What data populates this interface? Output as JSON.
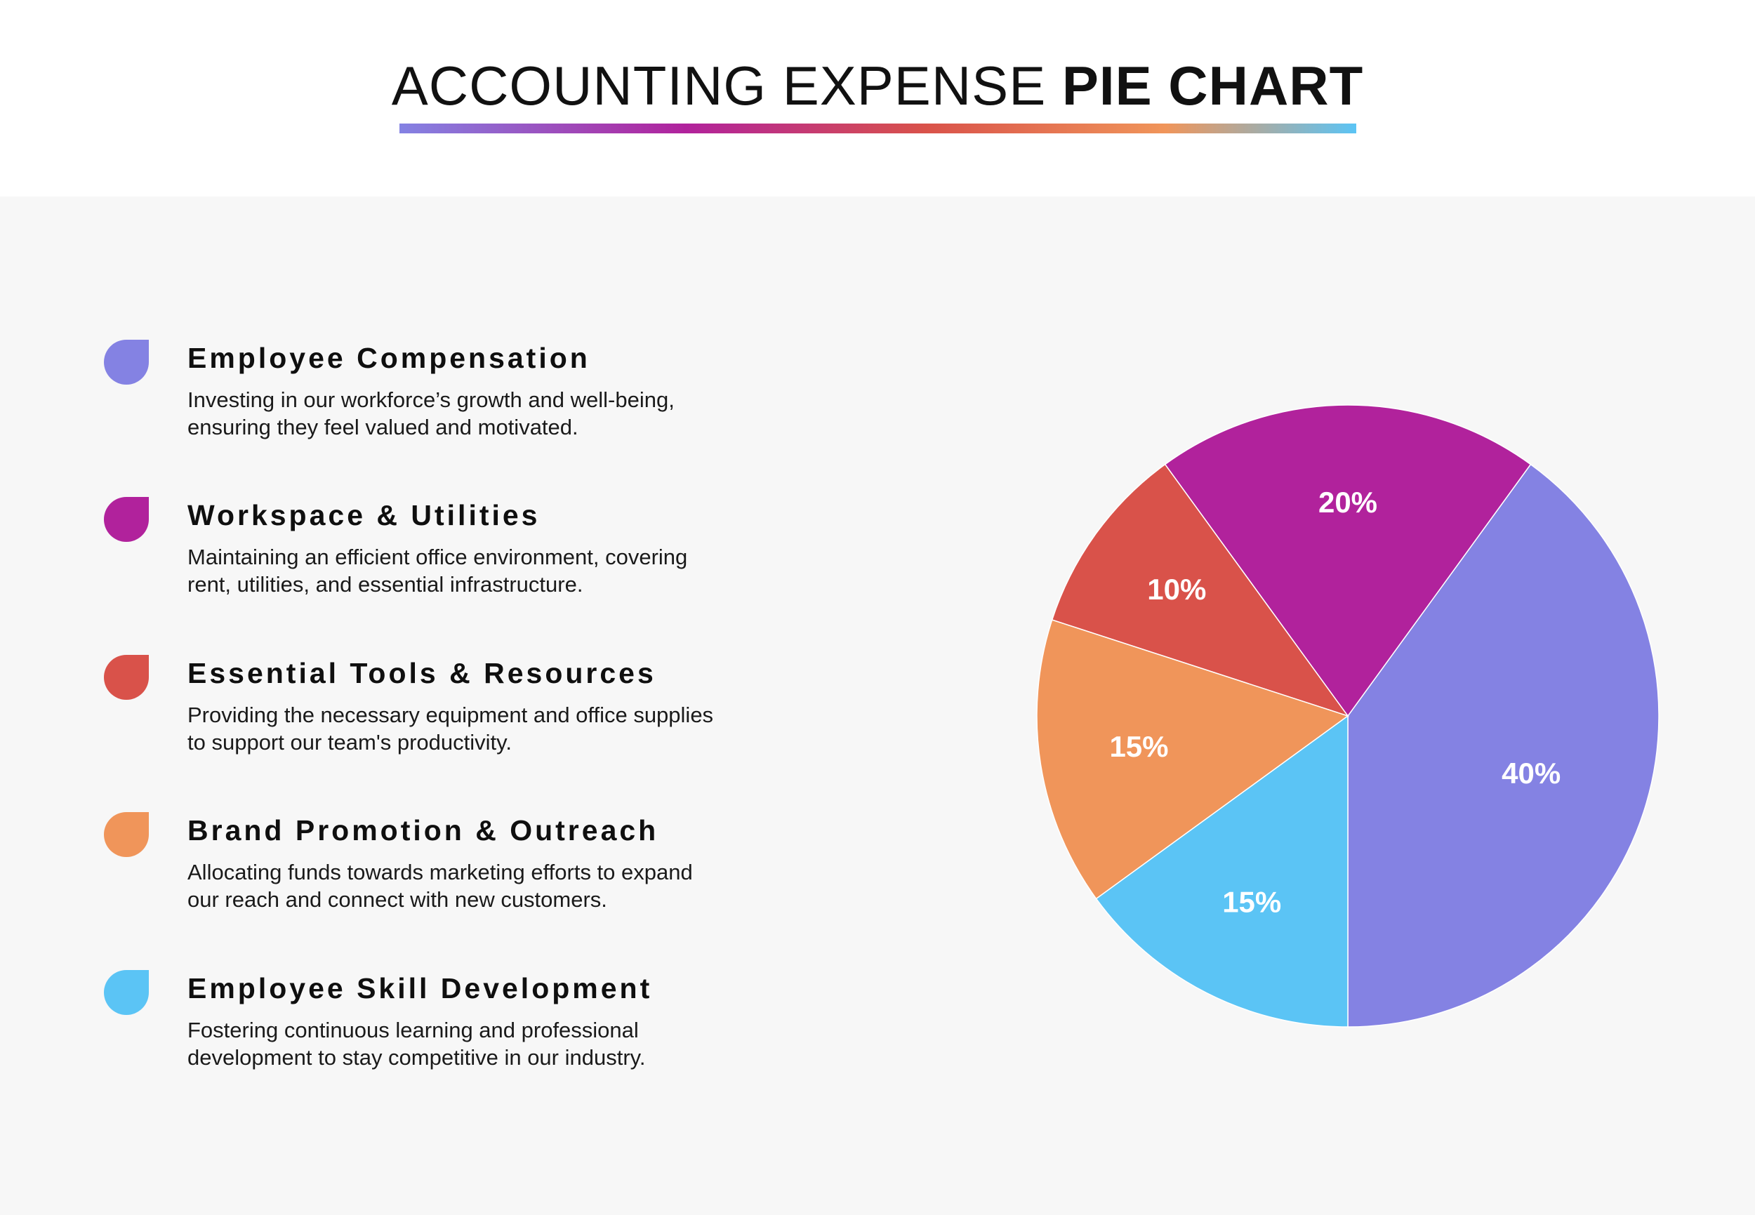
{
  "header": {
    "title_light": "ACCOUNTING EXPENSE ",
    "title_bold": "PIE CHART"
  },
  "legend": [
    {
      "title": "Employee Compensation",
      "desc_line1": "Investing in our workforce’s growth and well-being,",
      "desc_line2": "ensuring they feel valued and motivated.",
      "color": "#8482e3"
    },
    {
      "title": "Workspace & Utilities",
      "desc_line1": "Maintaining an efficient office environment, covering",
      "desc_line2": "rent, utilities, and essential infrastructure.",
      "color": "#b1229c"
    },
    {
      "title": "Essential Tools & Resources",
      "desc_line1": "Providing the necessary equipment and office supplies",
      "desc_line2": "to support our team's productivity.",
      "color": "#d9524a"
    },
    {
      "title": "Brand Promotion & Outreach",
      "desc_line1": "Allocating funds towards marketing efforts to expand",
      "desc_line2": "our reach and connect with new customers.",
      "color": "#f0955a"
    },
    {
      "title": "Employee Skill Development",
      "desc_line1": "Fostering continuous learning and professional",
      "desc_line2": "development to stay competitive in our industry.",
      "color": "#5bc4f5"
    }
  ],
  "chart_data": {
    "type": "pie",
    "title": "ACCOUNTING EXPENSE PIE CHART",
    "categories": [
      "Employee Compensation",
      "Workspace & Utilities",
      "Essential Tools & Resources",
      "Brand Promotion & Outreach",
      "Employee Skill Development"
    ],
    "values": [
      40,
      20,
      10,
      15,
      15
    ],
    "labels": [
      "40%",
      "20%",
      "10%",
      "15%",
      "15%"
    ],
    "colors": [
      "#8482e3",
      "#b1229c",
      "#d9524a",
      "#f0955a",
      "#5bc4f5"
    ],
    "legend": "left"
  }
}
